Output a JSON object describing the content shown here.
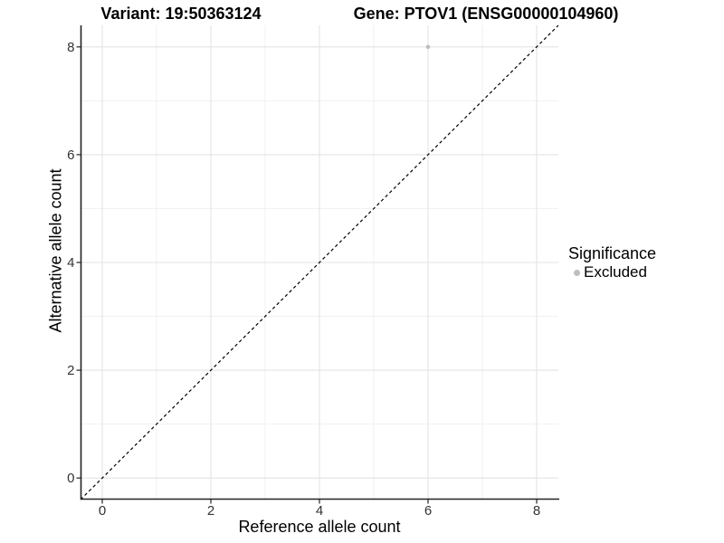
{
  "chart_data": {
    "type": "scatter",
    "title_left": "Variant: 19:50363124",
    "title_right": "Gene: PTOV1 (ENSG00000104960)",
    "xlabel": "Reference allele count",
    "ylabel": "Alternative allele count",
    "xlim": [
      -0.4,
      8.4
    ],
    "ylim": [
      -0.4,
      8.4
    ],
    "x_ticks": [
      0,
      2,
      4,
      6,
      8
    ],
    "y_ticks": [
      0,
      2,
      4,
      6,
      8
    ],
    "x_minor": [
      1,
      3,
      5,
      7
    ],
    "y_minor": [
      1,
      3,
      5,
      7
    ],
    "grid": true,
    "points": [
      {
        "x": 6,
        "y": 8,
        "series": "Excluded"
      }
    ],
    "reference_line": {
      "type": "identity",
      "slope": 1,
      "intercept": 0,
      "style": "dashed",
      "color": "#000000"
    },
    "legend": {
      "title": "Significance",
      "position": "right",
      "items": [
        {
          "label": "Excluded",
          "color": "#BDBDBD"
        }
      ]
    },
    "colors": {
      "point": "#BDBDBD",
      "grid_major": "#E3E3E3",
      "grid_minor": "#F1F1F1",
      "axis_line": "#222222",
      "tick_label": "#333333",
      "text": "#000000"
    }
  }
}
